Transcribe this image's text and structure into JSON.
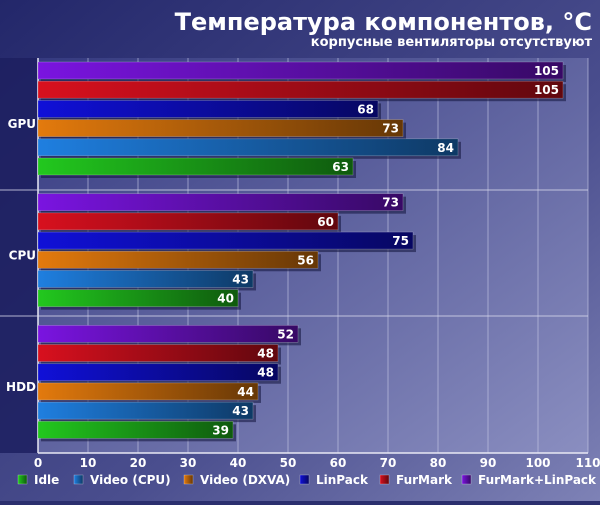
{
  "chart_data": {
    "type": "bar",
    "orientation": "horizontal",
    "title": "Температура компонентов, °C",
    "subtitle": "корпусные вентиляторы отсутствуют",
    "categories": [
      "GPU",
      "CPU",
      "HDD"
    ],
    "xlim": [
      0,
      110
    ],
    "xticks": [
      0,
      10,
      20,
      30,
      40,
      50,
      60,
      70,
      80,
      90,
      100,
      110
    ],
    "grid": true,
    "legend_position": "bottom",
    "series": [
      {
        "name": "Idle",
        "values": [
          63,
          40,
          39
        ],
        "color": "#22c81e"
      },
      {
        "name": "Video (CPU)",
        "values": [
          84,
          43,
          43
        ],
        "color": "#1f7fe0"
      },
      {
        "name": "Video (DXVA)",
        "values": [
          73,
          56,
          44
        ],
        "color": "#e37a0d"
      },
      {
        "name": "LinPack",
        "values": [
          68,
          75,
          48
        ],
        "color": "#1010d8"
      },
      {
        "name": "FurMark",
        "values": [
          105,
          60,
          48
        ],
        "color": "#d8101e"
      },
      {
        "name": "FurMark+LinPack",
        "values": [
          105,
          73,
          52
        ],
        "color": "#7a14e0"
      }
    ]
  }
}
